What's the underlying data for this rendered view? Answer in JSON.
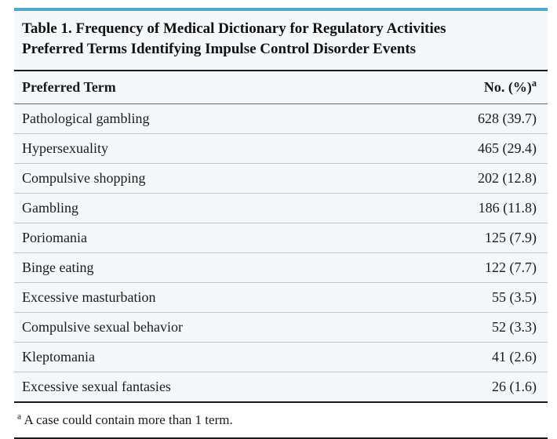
{
  "table": {
    "type": "table",
    "background_color": "#f5f8fa",
    "top_border_color": "#4fa9c9",
    "row_border_color": "#bfc6c9",
    "header_border_color": "#6a6a6a",
    "strong_border_color": "#1a1a1a",
    "text_color": "#1a1a1a",
    "title_fontsize_pt": 14,
    "header_fontsize_pt": 13,
    "cell_fontsize_pt": 13,
    "font_family": "Georgia serif",
    "title_lines": [
      "Table 1. Frequency of Medical Dictionary for Regulatory Activities",
      "Preferred Terms Identifying Impulse Control Disorder Events"
    ],
    "columns": [
      {
        "key": "term",
        "label": "Preferred Term",
        "align": "left"
      },
      {
        "key": "count",
        "label_prefix": "No. (%)",
        "sup": "a",
        "align": "right"
      }
    ],
    "rows": [
      {
        "term": "Pathological gambling",
        "count": 628,
        "pct": 39.7
      },
      {
        "term": "Hypersexuality",
        "count": 465,
        "pct": 29.4
      },
      {
        "term": "Compulsive shopping",
        "count": 202,
        "pct": 12.8
      },
      {
        "term": "Gambling",
        "count": 186,
        "pct": 11.8
      },
      {
        "term": "Poriomania",
        "count": 125,
        "pct": 7.9
      },
      {
        "term": "Binge eating",
        "count": 122,
        "pct": 7.7
      },
      {
        "term": "Excessive masturbation",
        "count": 55,
        "pct": 3.5
      },
      {
        "term": "Compulsive sexual behavior",
        "count": 52,
        "pct": 3.3
      },
      {
        "term": "Kleptomania",
        "count": 41,
        "pct": 2.6
      },
      {
        "term": "Excessive sexual fantasies",
        "count": 26,
        "pct": 1.6
      }
    ],
    "footnote": {
      "sup": "a",
      "text": " A case could contain more than 1 term."
    }
  }
}
